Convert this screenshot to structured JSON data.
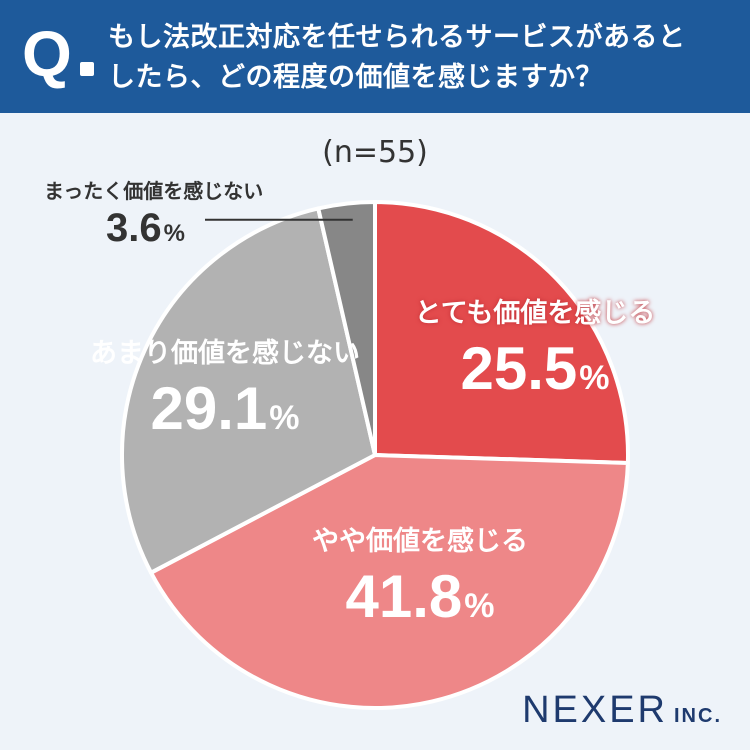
{
  "header": {
    "q_mark": "Q",
    "question_line1": "もし法改正対応を任せられるサービスがあると",
    "question_line2": "したら、どの程度の価値を感じますか？"
  },
  "sample_label": "(n=55)",
  "percent_sign": "%",
  "logo": {
    "main": "NEXER",
    "sub": "INC."
  },
  "chart_data": {
    "type": "pie",
    "title": "",
    "start": "12 o'clock, clockwise",
    "slices": [
      {
        "label": "とても価値を感じる",
        "value": 25.5,
        "value_text": "25.5",
        "color": "#e34b4d",
        "label_position": "inside"
      },
      {
        "label": "やや価値を感じる",
        "value": 41.8,
        "value_text": "41.8",
        "color": "#ee8788",
        "label_position": "inside"
      },
      {
        "label": "あまり価値を感じない",
        "value": 29.1,
        "value_text": "29.1",
        "color": "#b2b2b2",
        "label_position": "inside"
      },
      {
        "label": "まったく価値を感じない",
        "value": 3.6,
        "value_text": "3.6",
        "color": "#878787",
        "label_position": "outside with leader line"
      }
    ]
  }
}
